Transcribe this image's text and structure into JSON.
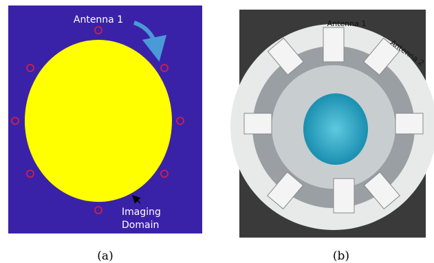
{
  "panels": [
    {
      "label": "(a)",
      "antenna_label": "Antenna 1",
      "domain_label": [
        "Imaging",
        "Domain"
      ]
    },
    {
      "label": "(b)",
      "antenna_labels": [
        "Antenna 1",
        "Antenna 2"
      ]
    }
  ]
}
